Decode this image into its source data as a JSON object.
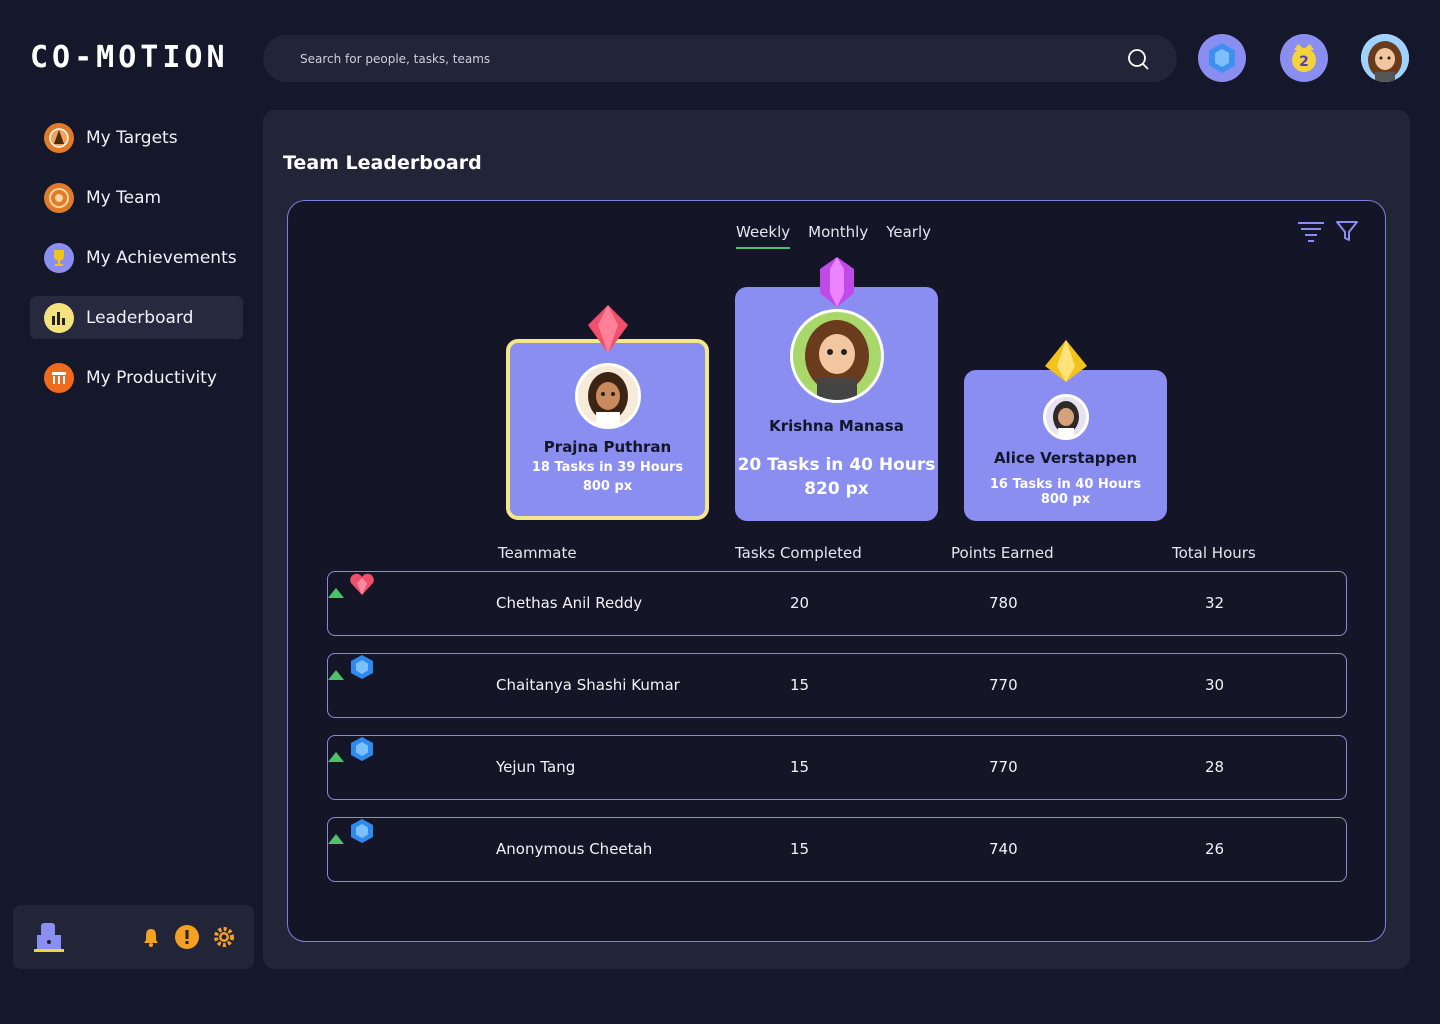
{
  "app": {
    "logo": "CO-MOTION"
  },
  "search": {
    "placeholder": "Search for people, tasks, teams"
  },
  "sidebar": {
    "items": [
      {
        "label": "My Targets",
        "icon": "target-icon",
        "color": "#e07b2a"
      },
      {
        "label": "My Team",
        "icon": "team-icon",
        "color": "#e07b2a"
      },
      {
        "label": "My Achievements",
        "icon": "trophy-icon",
        "color": "#8b8ff0"
      },
      {
        "label": "Leaderboard",
        "icon": "bar-chart-icon",
        "color": "#f4e27c",
        "active": true
      },
      {
        "label": "My Productivity",
        "icon": "productivity-icon",
        "color": "#ef6a1d"
      }
    ]
  },
  "page": {
    "title": "Team Leaderboard"
  },
  "tabs": [
    "Weekly",
    "Monthly",
    "Yearly"
  ],
  "active_tab": "Weekly",
  "podium": {
    "first": {
      "name": "Krishna Manasa",
      "tasks": "20 Tasks in 40 Hours",
      "points": "820 px",
      "gem": "purple-gem-icon"
    },
    "second": {
      "name": "Prajna Puthran",
      "tasks": "18 Tasks in 39 Hours",
      "points": "800 px",
      "gem": "red-gem-icon"
    },
    "third": {
      "name": "Alice Verstappen",
      "tasks": "16 Tasks in 40 Hours",
      "points": "800 px",
      "gem": "yellow-gem-icon"
    }
  },
  "table": {
    "headers": {
      "teammate": "Teammate",
      "tasks": "Tasks Completed",
      "points": "Points Earned",
      "hours": "Total Hours"
    },
    "rows": [
      {
        "name": "Chethas Anil Reddy",
        "tasks": "20",
        "points": "780",
        "hours": "32",
        "gem": "heart-gem-icon"
      },
      {
        "name": "Chaitanya Shashi Kumar",
        "tasks": "15",
        "points": "770",
        "hours": "30",
        "gem": "blue-gem-icon"
      },
      {
        "name": "Yejun Tang",
        "tasks": "15",
        "points": "770",
        "hours": "28",
        "gem": "blue-gem-icon"
      },
      {
        "name": "Anonymous Cheetah",
        "tasks": "15",
        "points": "740",
        "hours": "26",
        "gem": "blue-gem-icon"
      }
    ]
  },
  "colors": {
    "accent": "#8a8ef0",
    "background": "#15172b",
    "panel": "#222438",
    "trend_up": "#4ec26b",
    "gold_border": "#f4e68a"
  }
}
